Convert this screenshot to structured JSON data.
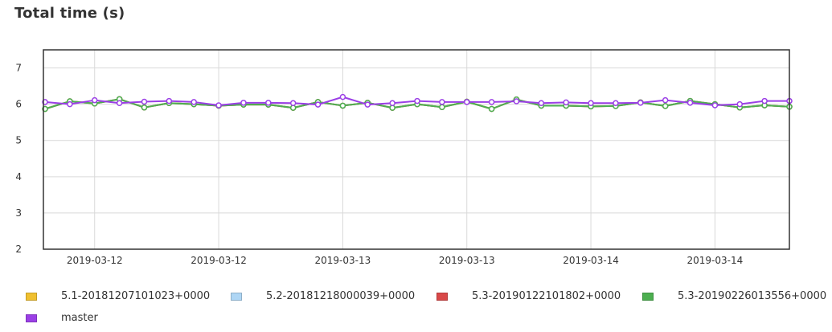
{
  "title": "Total time (s)",
  "chart_data": {
    "type": "line",
    "title": "Total time (s)",
    "xlabel": "",
    "ylabel": "",
    "ylim": [
      2,
      7.5
    ],
    "y_ticks": [
      2,
      3,
      4,
      5,
      6,
      7
    ],
    "x_tick_labels": [
      "2019-03-12",
      "2019-03-12",
      "2019-03-13",
      "2019-03-13",
      "2019-03-14",
      "2019-03-14"
    ],
    "x_tick_indices": [
      2,
      7,
      12,
      17,
      22,
      27
    ],
    "grid": true,
    "legend_position": "bottom",
    "series": [
      {
        "name": "5.1-20181207101023+0000",
        "color": "#f0c030",
        "values": [
          5.87,
          6.08,
          6.02,
          6.14,
          5.91,
          6.03,
          6.0,
          5.96,
          5.99,
          5.99,
          5.9,
          6.06,
          5.96,
          6.04,
          5.9,
          6.0,
          5.92,
          6.07,
          5.87,
          6.13,
          5.96,
          5.96,
          5.94,
          5.95,
          6.05,
          5.95,
          6.09,
          6.0,
          5.91,
          5.97,
          5.93
        ]
      },
      {
        "name": "5.2-20181218000039+0000",
        "color": "#aed6f5",
        "values": [
          5.87,
          6.08,
          6.02,
          6.14,
          5.91,
          6.03,
          6.0,
          5.96,
          5.99,
          5.99,
          5.9,
          6.06,
          5.96,
          6.04,
          5.9,
          6.0,
          5.92,
          6.07,
          5.87,
          6.13,
          5.96,
          5.96,
          5.94,
          5.95,
          6.05,
          5.95,
          6.09,
          6.0,
          5.91,
          5.97,
          5.93
        ]
      },
      {
        "name": "5.3-20190122101802+0000",
        "color": "#d94848",
        "values": [
          5.87,
          6.08,
          6.02,
          6.14,
          5.91,
          6.03,
          6.0,
          5.96,
          5.99,
          5.99,
          5.9,
          6.06,
          5.96,
          6.04,
          5.9,
          6.0,
          5.92,
          6.07,
          5.87,
          6.13,
          5.96,
          5.96,
          5.94,
          5.95,
          6.05,
          5.95,
          6.09,
          6.0,
          5.91,
          5.97,
          5.93
        ]
      },
      {
        "name": "5.3-20190226013556+0000",
        "color": "#4caf50",
        "values": [
          5.87,
          6.08,
          6.02,
          6.14,
          5.91,
          6.03,
          6.0,
          5.96,
          5.99,
          5.99,
          5.9,
          6.06,
          5.96,
          6.04,
          5.9,
          6.0,
          5.92,
          6.07,
          5.87,
          6.13,
          5.96,
          5.96,
          5.94,
          5.95,
          6.05,
          5.95,
          6.09,
          6.0,
          5.91,
          5.97,
          5.93
        ]
      },
      {
        "name": "master",
        "color": "#9b3fe6",
        "values": [
          6.06,
          6.0,
          6.11,
          6.03,
          6.07,
          6.09,
          6.06,
          5.97,
          6.04,
          6.04,
          6.03,
          5.99,
          6.2,
          5.99,
          6.03,
          6.09,
          6.06,
          6.06,
          6.06,
          6.08,
          6.03,
          6.05,
          6.03,
          6.03,
          6.04,
          6.11,
          6.04,
          5.97,
          6.0,
          6.09,
          6.09
        ]
      }
    ]
  }
}
